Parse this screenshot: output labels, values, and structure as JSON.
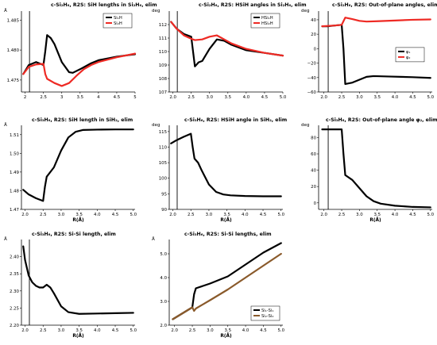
{
  "figure": {
    "background": "#ffffff",
    "vline_color": "#000000"
  },
  "chart_data": [
    {
      "type": "line",
      "title": "c-Si₂H₆, R2S: SiH lengths in Si₂H₆, elim",
      "xlabel": "",
      "ylabel": "Å",
      "xlim": [
        1.9,
        5.0
      ],
      "ylim": [
        1.473,
        1.4865
      ],
      "xticks": [
        "2",
        "2.5",
        "3",
        "3.5",
        "4",
        "4.5",
        "5"
      ],
      "yticks": [
        "1.475",
        "1.480",
        "1.485"
      ],
      "vline_x": 2.12,
      "legend": "top-right",
      "series": [
        {
          "name": "Si₁H",
          "color": "#000000",
          "x": [
            1.95,
            2.1,
            2.3,
            2.5,
            2.55,
            2.6,
            2.7,
            2.8,
            3.0,
            3.2,
            3.3,
            3.5,
            3.8,
            4.0,
            4.5,
            5.0
          ],
          "y": [
            1.476,
            1.4775,
            1.478,
            1.4775,
            1.4798,
            1.4825,
            1.482,
            1.481,
            1.478,
            1.4763,
            1.4762,
            1.4768,
            1.4778,
            1.4783,
            1.4789,
            1.4793
          ]
        },
        {
          "name": "Si₂H",
          "color": "#ee2a24",
          "x": [
            1.95,
            2.1,
            2.3,
            2.5,
            2.55,
            2.6,
            2.8,
            3.0,
            3.2,
            3.4,
            3.6,
            3.8,
            4.0,
            4.5,
            5.0
          ],
          "y": [
            1.476,
            1.4772,
            1.4776,
            1.4777,
            1.476,
            1.4752,
            1.4745,
            1.474,
            1.4745,
            1.4757,
            1.4768,
            1.4775,
            1.478,
            1.4788,
            1.4794
          ]
        }
      ]
    },
    {
      "type": "line",
      "title": "c-Si₂H₆, R2S: HSiH angles in Si₂H₆, elim",
      "xlabel": "",
      "ylabel": "deg",
      "xlim": [
        1.9,
        5.0
      ],
      "ylim": [
        107,
        113
      ],
      "xticks": [
        "2.0",
        "2.5",
        "3.0",
        "3.5",
        "4.0",
        "4.5",
        "5.0"
      ],
      "yticks": [
        "107",
        "108",
        "109",
        "110",
        "111",
        "112"
      ],
      "vline_x": 2.12,
      "legend": "top-right",
      "series": [
        {
          "name": "HSi₁H",
          "color": "#000000",
          "x": [
            1.95,
            2.1,
            2.3,
            2.5,
            2.55,
            2.6,
            2.7,
            2.8,
            3.0,
            3.2,
            3.4,
            3.6,
            4.0,
            4.5,
            5.0
          ],
          "y": [
            112.2,
            111.7,
            111.3,
            111.1,
            110.0,
            108.9,
            109.2,
            109.3,
            110.2,
            110.9,
            110.8,
            110.5,
            110.1,
            109.9,
            109.7
          ]
        },
        {
          "name": "HSi₂H",
          "color": "#ee2a24",
          "x": [
            1.95,
            2.1,
            2.3,
            2.5,
            2.6,
            2.8,
            3.0,
            3.2,
            3.4,
            3.6,
            4.0,
            4.5,
            5.0
          ],
          "y": [
            112.2,
            111.7,
            111.2,
            110.95,
            110.85,
            110.9,
            111.1,
            111.2,
            110.9,
            110.6,
            110.2,
            109.9,
            109.7
          ]
        }
      ]
    },
    {
      "type": "line",
      "title": "c-Si₂H₆, R2S: Out-of-plane angles, elim",
      "xlabel": "",
      "ylabel": "deg",
      "xlim": [
        1.85,
        5.05
      ],
      "ylim": [
        -60,
        52
      ],
      "xticks": [
        "2.0",
        "2.5",
        "3.0",
        "3.5",
        "4.0",
        "4.5",
        "5.0"
      ],
      "yticks": [
        "−60",
        "−40",
        "−20",
        "0",
        "20",
        "40"
      ],
      "vline_x": 2.12,
      "legend": "center-right",
      "series": [
        {
          "name": "φ₁",
          "color": "#000000",
          "x": [
            1.95,
            2.1,
            2.3,
            2.5,
            2.55,
            2.6,
            2.8,
            3.0,
            3.2,
            3.4,
            3.8,
            4.5,
            5.0
          ],
          "y": [
            31,
            31,
            32,
            33,
            0,
            -49,
            -47,
            -43,
            -39,
            -38,
            -38.5,
            -39.5,
            -40.5
          ]
        },
        {
          "name": "φ₂",
          "color": "#ee2a24",
          "x": [
            1.95,
            2.1,
            2.3,
            2.5,
            2.55,
            2.6,
            2.8,
            3.0,
            3.2,
            3.5,
            4.0,
            4.5,
            5.0
          ],
          "y": [
            31,
            31.5,
            32,
            33,
            38,
            43,
            41,
            38.5,
            37.5,
            38,
            39,
            40,
            40.5
          ]
        }
      ]
    },
    {
      "type": "line",
      "title": "c-Si₃H₆, R2S: SiH length in SiH₂, elim",
      "xlabel": "R(Å)",
      "ylabel": "Å",
      "xlim": [
        1.9,
        5.05
      ],
      "ylim": [
        1.47,
        1.515
      ],
      "xticks": [
        "2.0",
        "2.5",
        "3.0",
        "3.5",
        "4.0",
        "4.5",
        "5.0"
      ],
      "yticks": [
        "1.47",
        "1.48",
        "1.49",
        "1.50",
        "1.51"
      ],
      "vline_x": null,
      "legend": "none",
      "series": [
        {
          "name": "",
          "color": "#000000",
          "x": [
            1.95,
            2.1,
            2.3,
            2.5,
            2.55,
            2.6,
            2.8,
            3.0,
            3.2,
            3.4,
            3.6,
            4.0,
            4.5,
            5.0
          ],
          "y": [
            1.4805,
            1.478,
            1.476,
            1.4745,
            1.482,
            1.4875,
            1.4925,
            1.5015,
            1.5085,
            1.5115,
            1.5125,
            1.5127,
            1.5128,
            1.5128
          ]
        }
      ]
    },
    {
      "type": "line",
      "title": "c-Si₃H₆, R2S: HSiH angle in SiH₂, elim",
      "xlabel": "R(Å)",
      "ylabel": "deg",
      "xlim": [
        1.9,
        5.05
      ],
      "ylim": [
        90,
        117
      ],
      "xticks": [
        "2.0",
        "2.5",
        "3.0",
        "3.5",
        "4.0",
        "4.5",
        "5.0"
      ],
      "yticks": [
        "90",
        "95",
        "100",
        "105",
        "110",
        "115"
      ],
      "vline_x": 2.12,
      "legend": "none",
      "series": [
        {
          "name": "",
          "color": "#000000",
          "x": [
            1.95,
            2.1,
            2.3,
            2.5,
            2.55,
            2.6,
            2.7,
            2.8,
            3.0,
            3.2,
            3.4,
            3.6,
            4.0,
            4.5,
            5.0
          ],
          "y": [
            111.2,
            112.2,
            113.3,
            114.3,
            110.0,
            106.3,
            105.0,
            102.5,
            98.0,
            95.6,
            94.8,
            94.5,
            94.3,
            94.2,
            94.2
          ]
        }
      ]
    },
    {
      "type": "line",
      "title": "c-Si₃H₆, R2S: Out-of-plane angle φ₂, elim",
      "xlabel": "R(Å)",
      "ylabel": "deg",
      "xlim": [
        1.85,
        5.05
      ],
      "ylim": [
        -8,
        95
      ],
      "xticks": [
        "2.0",
        "2.5",
        "3.0",
        "3.5",
        "4.0",
        "4.5",
        "5.0"
      ],
      "yticks": [
        "0",
        "20",
        "40",
        "60",
        "80"
      ],
      "vline_x": 2.12,
      "legend": "none",
      "series": [
        {
          "name": "",
          "color": "#000000",
          "x": [
            1.95,
            2.1,
            2.3,
            2.5,
            2.55,
            2.6,
            2.8,
            3.0,
            3.2,
            3.4,
            3.6,
            4.0,
            4.5,
            5.0
          ],
          "y": [
            90,
            90,
            90,
            90,
            60,
            34,
            28,
            18,
            8,
            2,
            -1,
            -3.5,
            -5,
            -5.5
          ]
        }
      ]
    },
    {
      "type": "line",
      "title": "c-Si₃H₆, R2S: Si-Si length, elim",
      "xlabel": "R(Å)",
      "ylabel": "Å",
      "xlim": [
        1.9,
        5.05
      ],
      "ylim": [
        2.2,
        2.45
      ],
      "xticks": [
        "2.0",
        "2.5",
        "3.0",
        "3.5",
        "4.0",
        "4.5",
        "5.0"
      ],
      "yticks": [
        "2.20",
        "2.25",
        "2.30",
        "2.35",
        "2.40"
      ],
      "vline_x": 2.12,
      "legend": "none",
      "series": [
        {
          "name": "",
          "color": "#000000",
          "x": [
            1.95,
            2.0,
            2.1,
            2.2,
            2.3,
            2.4,
            2.5,
            2.6,
            2.7,
            2.8,
            3.0,
            3.2,
            3.5,
            4.0,
            4.5,
            5.0
          ],
          "y": [
            2.43,
            2.39,
            2.345,
            2.325,
            2.315,
            2.31,
            2.31,
            2.318,
            2.31,
            2.293,
            2.255,
            2.238,
            2.233,
            2.234,
            2.235,
            2.236
          ]
        }
      ]
    },
    {
      "type": "line",
      "title": "c-Si₃H₆, R2S: Si-Si lengths, elim",
      "xlabel": "R(Å)",
      "ylabel": "Å",
      "xlim": [
        1.85,
        5.05
      ],
      "ylim": [
        2.0,
        5.6
      ],
      "xticks": [
        "2.0",
        "2.5",
        "3.0",
        "3.5",
        "4.0",
        "4.5",
        "5.0"
      ],
      "yticks": [
        "2.0",
        "3.0",
        "4.0",
        "5.0"
      ],
      "vline_x": null,
      "legend": "bottom-right",
      "series": [
        {
          "name": "Si₁-Si₁",
          "color": "#000000",
          "x": [
            1.95,
            2.5,
            2.55,
            2.6,
            3.0,
            3.5,
            4.0,
            4.5,
            5.0
          ],
          "y": [
            2.25,
            2.75,
            3.3,
            3.55,
            3.75,
            4.05,
            4.55,
            5.05,
            5.45
          ]
        },
        {
          "name": "Si₂-Si₂",
          "color": "#8a5a2b",
          "x": [
            1.95,
            2.5,
            2.55,
            2.6,
            3.0,
            3.5,
            4.0,
            4.5,
            5.0
          ],
          "y": [
            2.25,
            2.75,
            2.6,
            2.7,
            3.05,
            3.5,
            4.0,
            4.5,
            5.0
          ]
        }
      ]
    }
  ]
}
